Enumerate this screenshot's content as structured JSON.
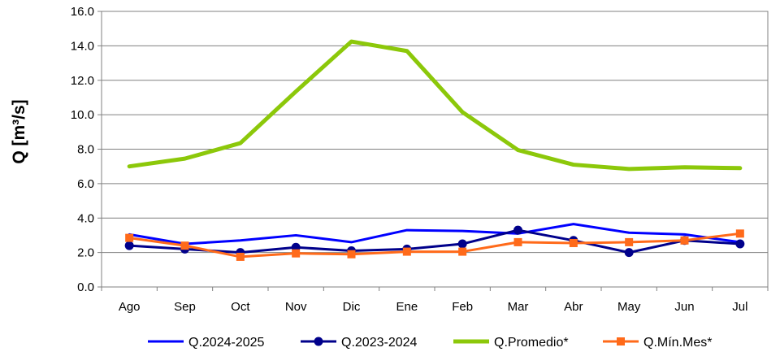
{
  "chart_data": {
    "type": "line",
    "title": "",
    "xlabel": "",
    "ylabel": "Q [m³/s]",
    "ylim": [
      0,
      16
    ],
    "y_ticks": [
      "0.0",
      "2.0",
      "4.0",
      "6.0",
      "8.0",
      "10.0",
      "12.0",
      "14.0",
      "16.0"
    ],
    "grid": true,
    "legend_position": "bottom",
    "categories": [
      "Ago",
      "Sep",
      "Oct",
      "Nov",
      "Dic",
      "Ene",
      "Feb",
      "Mar",
      "Abr",
      "May",
      "Jun",
      "Jul"
    ],
    "series": [
      {
        "name": "Q.2024-2025",
        "color": "#0000ff",
        "marker": "none",
        "values": [
          3.05,
          2.5,
          2.7,
          3.0,
          2.6,
          3.3,
          3.25,
          3.1,
          3.65,
          3.15,
          3.05,
          2.6
        ]
      },
      {
        "name": "Q.2023-2024",
        "color": "#00008b",
        "marker": "circle",
        "values": [
          2.4,
          2.2,
          2.0,
          2.3,
          2.1,
          2.2,
          2.5,
          3.3,
          2.7,
          2.0,
          2.7,
          2.5
        ]
      },
      {
        "name": "Q.Promedio*",
        "color": "#8cc80a",
        "marker": "none",
        "values": [
          7.0,
          7.45,
          8.35,
          11.35,
          14.25,
          13.7,
          10.15,
          7.95,
          7.1,
          6.85,
          6.95,
          6.9
        ]
      },
      {
        "name": "Q.Mín.Mes*",
        "color": "#ff6a1a",
        "marker": "square",
        "values": [
          2.85,
          2.4,
          1.75,
          1.95,
          1.9,
          2.05,
          2.05,
          2.6,
          2.55,
          2.6,
          2.7,
          3.1
        ]
      }
    ]
  }
}
